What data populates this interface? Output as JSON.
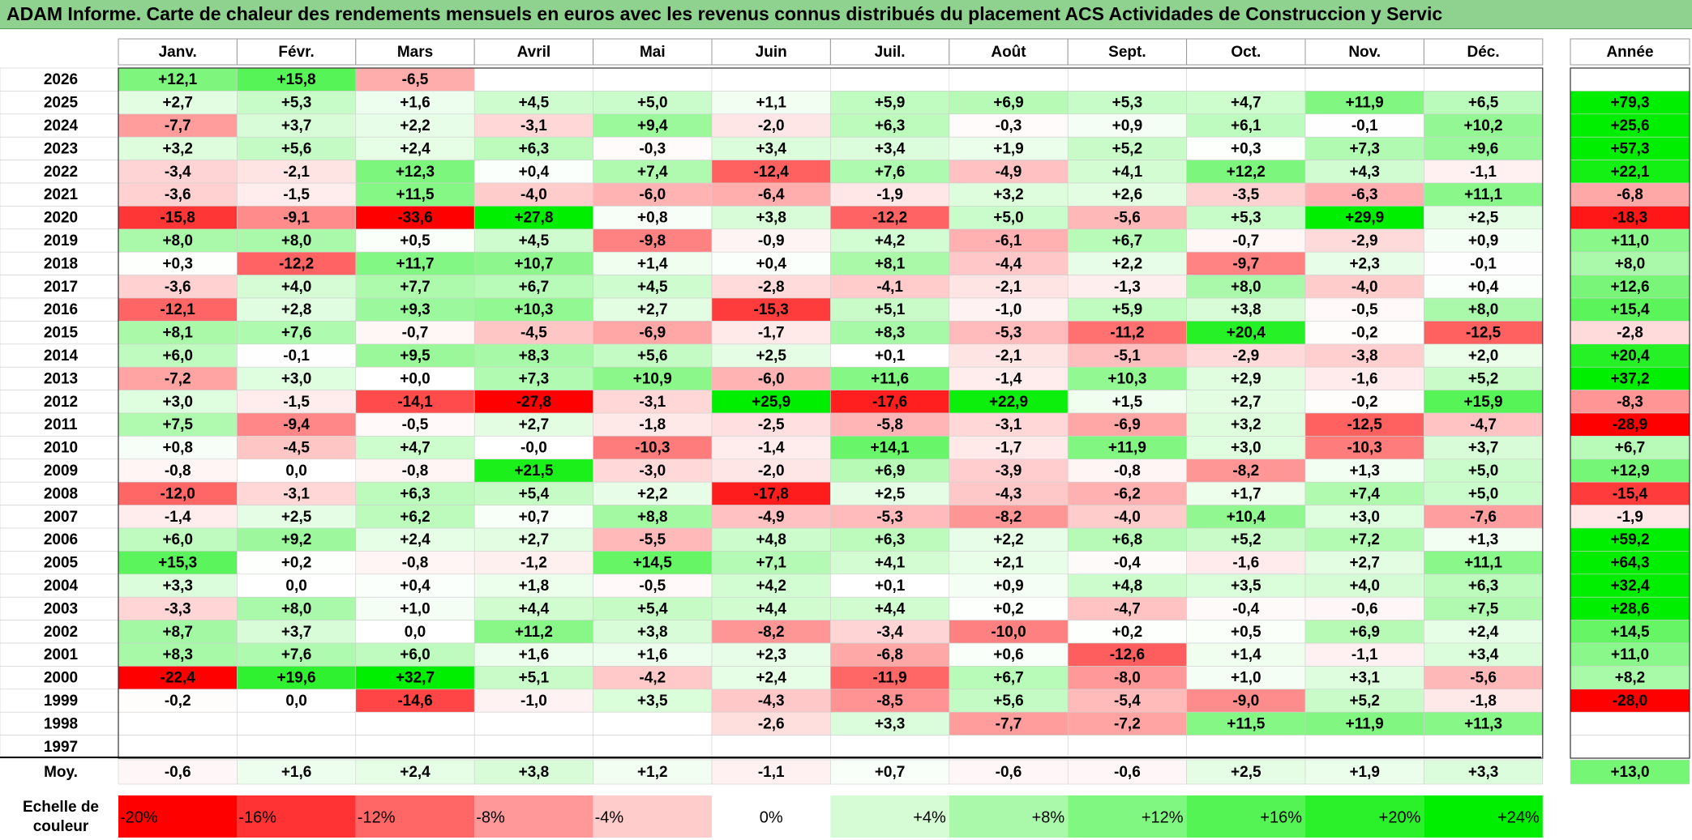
{
  "chart_data": {
    "type": "heatmap",
    "title": "ADAM Informe. Carte de chaleur des rendements mensuels en euros avec les revenus connus distribués du placement ACS Actividades de Construccion y Servic",
    "months": [
      "Janv.",
      "Févr.",
      "Mars",
      "Avril",
      "Mai",
      "Juin",
      "Juil.",
      "Août",
      "Sept.",
      "Oct.",
      "Nov.",
      "Déc."
    ],
    "year_header": "Année",
    "years": [
      "2026",
      "2025",
      "2024",
      "2023",
      "2022",
      "2021",
      "2020",
      "2019",
      "2018",
      "2017",
      "2016",
      "2015",
      "2014",
      "2013",
      "2012",
      "2011",
      "2010",
      "2009",
      "2008",
      "2007",
      "2006",
      "2005",
      "2004",
      "2003",
      "2002",
      "2001",
      "2000",
      "1999",
      "1998",
      "1997"
    ],
    "values": [
      [
        "+12,1",
        "+15,8",
        "-6,5",
        "",
        "",
        "",
        "",
        "",
        "",
        "",
        "",
        ""
      ],
      [
        "+2,7",
        "+5,3",
        "+1,6",
        "+4,5",
        "+5,0",
        "+1,1",
        "+5,9",
        "+6,9",
        "+5,3",
        "+4,7",
        "+11,9",
        "+6,5"
      ],
      [
        "-7,7",
        "+3,7",
        "+2,2",
        "-3,1",
        "+9,4",
        "-2,0",
        "+6,3",
        "-0,3",
        "+0,9",
        "+6,1",
        "-0,1",
        "+10,2"
      ],
      [
        "+3,2",
        "+5,6",
        "+2,4",
        "+6,3",
        "-0,3",
        "+3,4",
        "+3,4",
        "+1,9",
        "+5,2",
        "+0,3",
        "+7,3",
        "+9,6"
      ],
      [
        "-3,4",
        "-2,1",
        "+12,3",
        "+0,4",
        "+7,4",
        "-12,4",
        "+7,6",
        "-4,9",
        "+4,1",
        "+12,2",
        "+4,3",
        "-1,1"
      ],
      [
        "-3,6",
        "-1,5",
        "+11,5",
        "-4,0",
        "-6,0",
        "-6,4",
        "-1,9",
        "+3,2",
        "+2,6",
        "-3,5",
        "-6,3",
        "+11,1"
      ],
      [
        "-15,8",
        "-9,1",
        "-33,6",
        "+27,8",
        "+0,8",
        "+3,8",
        "-12,2",
        "+5,0",
        "-5,6",
        "+5,3",
        "+29,9",
        "+2,5"
      ],
      [
        "+8,0",
        "+8,0",
        "+0,5",
        "+4,5",
        "-9,8",
        "-0,9",
        "+4,2",
        "-6,1",
        "+6,7",
        "-0,7",
        "-2,9",
        "+0,9"
      ],
      [
        "+0,3",
        "-12,2",
        "+11,7",
        "+10,7",
        "+1,4",
        "+0,4",
        "+8,1",
        "-4,4",
        "+2,2",
        "-9,7",
        "+2,3",
        "-0,1"
      ],
      [
        "-3,6",
        "+4,0",
        "+7,7",
        "+6,7",
        "+4,5",
        "-2,8",
        "-4,1",
        "-2,1",
        "-1,3",
        "+8,0",
        "-4,0",
        "+0,4"
      ],
      [
        "-12,1",
        "+2,8",
        "+9,3",
        "+10,3",
        "+2,7",
        "-15,3",
        "+5,1",
        "-1,0",
        "+5,9",
        "+3,8",
        "-0,5",
        "+8,0"
      ],
      [
        "+8,1",
        "+7,6",
        "-0,7",
        "-4,5",
        "-6,9",
        "-1,7",
        "+8,3",
        "-5,3",
        "-11,2",
        "+20,4",
        "-0,2",
        "-12,5"
      ],
      [
        "+6,0",
        "-0,1",
        "+9,5",
        "+8,3",
        "+5,6",
        "+2,5",
        "+0,1",
        "-2,1",
        "-5,1",
        "-2,9",
        "-3,8",
        "+2,0"
      ],
      [
        "-7,2",
        "+3,0",
        "+0,0",
        "+7,3",
        "+10,9",
        "-6,0",
        "+11,6",
        "-1,4",
        "+10,3",
        "+2,9",
        "-1,6",
        "+5,2"
      ],
      [
        "+3,0",
        "-1,5",
        "-14,1",
        "-27,8",
        "-3,1",
        "+25,9",
        "-17,6",
        "+22,9",
        "+1,5",
        "+2,7",
        "-0,2",
        "+15,9"
      ],
      [
        "+7,5",
        "-9,4",
        "-0,5",
        "+2,7",
        "-1,8",
        "-2,5",
        "-5,8",
        "-3,1",
        "-6,9",
        "+3,2",
        "-12,5",
        "-4,7"
      ],
      [
        "+0,8",
        "-4,5",
        "+4,7",
        "-0,0",
        "-10,3",
        "-1,4",
        "+14,1",
        "-1,7",
        "+11,9",
        "+3,0",
        "-10,3",
        "+3,7"
      ],
      [
        "-0,8",
        "0,0",
        "-0,8",
        "+21,5",
        "-3,0",
        "-2,0",
        "+6,9",
        "-3,9",
        "-0,8",
        "-8,2",
        "+1,3",
        "+5,0"
      ],
      [
        "-12,0",
        "-3,1",
        "+6,3",
        "+5,4",
        "+2,2",
        "-17,8",
        "+2,5",
        "-4,3",
        "-6,2",
        "+1,7",
        "+7,4",
        "+5,0"
      ],
      [
        "-1,4",
        "+2,5",
        "+6,2",
        "+0,7",
        "+8,8",
        "-4,9",
        "-5,3",
        "-8,2",
        "-4,0",
        "+10,4",
        "+3,0",
        "-7,6"
      ],
      [
        "+6,0",
        "+9,2",
        "+2,4",
        "+2,7",
        "-5,5",
        "+4,8",
        "+6,3",
        "+2,2",
        "+6,8",
        "+5,2",
        "+7,2",
        "+1,3"
      ],
      [
        "+15,3",
        "+0,2",
        "-0,8",
        "-1,2",
        "+14,5",
        "+7,1",
        "+4,1",
        "+2,1",
        "-0,4",
        "-1,6",
        "+2,7",
        "+11,1"
      ],
      [
        "+3,3",
        "0,0",
        "+0,4",
        "+1,8",
        "-0,5",
        "+4,2",
        "+0,1",
        "+0,9",
        "+4,8",
        "+3,5",
        "+4,0",
        "+6,3"
      ],
      [
        "-3,3",
        "+8,0",
        "+1,0",
        "+4,4",
        "+5,4",
        "+4,4",
        "+4,4",
        "+0,2",
        "-4,7",
        "-0,4",
        "-0,6",
        "+7,5"
      ],
      [
        "+8,7",
        "+3,7",
        "0,0",
        "+11,2",
        "+3,8",
        "-8,2",
        "-3,4",
        "-10,0",
        "+0,2",
        "+0,5",
        "+6,9",
        "+2,4"
      ],
      [
        "+8,3",
        "+7,6",
        "+6,0",
        "+1,6",
        "+1,6",
        "+2,3",
        "-6,8",
        "+0,6",
        "-12,6",
        "+1,4",
        "-1,1",
        "+3,4"
      ],
      [
        "-22,4",
        "+19,6",
        "+32,7",
        "+5,1",
        "-4,2",
        "+2,4",
        "-11,9",
        "+6,7",
        "-8,0",
        "+1,0",
        "+3,1",
        "-5,6"
      ],
      [
        "-0,2",
        "0,0",
        "-14,6",
        "-1,0",
        "+3,5",
        "-4,3",
        "-8,5",
        "+5,6",
        "-5,4",
        "-9,0",
        "+5,2",
        "-1,8"
      ],
      [
        "",
        "",
        "",
        "",
        "",
        "-2,6",
        "+3,3",
        "-7,7",
        "-7,2",
        "+11,5",
        "+11,9",
        "+11,3"
      ],
      [
        "",
        "",
        "",
        "",
        "",
        "",
        "",
        "",
        "",
        "",
        "",
        ""
      ]
    ],
    "annual": [
      "",
      "+79,3",
      "+25,6",
      "+57,3",
      "+22,1",
      "-6,8",
      "-18,3",
      "+11,0",
      "+8,0",
      "+12,6",
      "+15,4",
      "-2,8",
      "+20,4",
      "+37,2",
      "-8,3",
      "-28,9",
      "+6,7",
      "+12,9",
      "-15,4",
      "-1,9",
      "+59,2",
      "+64,3",
      "+32,4",
      "+28,6",
      "+14,5",
      "+11,0",
      "+8,2",
      "-28,0",
      "",
      ""
    ],
    "avg_label": "Moy.",
    "averages": [
      "-0,6",
      "+1,6",
      "+2,4",
      "+3,8",
      "+1,2",
      "-1,1",
      "+0,7",
      "-0,6",
      "-0,6",
      "+2,5",
      "+1,9",
      "+3,3"
    ],
    "avg_annual": "+13,0",
    "scale_label": [
      "Echelle de",
      "couleur"
    ],
    "scale": [
      "-20%",
      "-16%",
      "-12%",
      "-8%",
      "-4%",
      "0%",
      "+4%",
      "+8%",
      "+12%",
      "+16%",
      "+20%",
      "+24%"
    ],
    "scale_values": [
      -20,
      -16,
      -12,
      -8,
      -4,
      0,
      4,
      8,
      12,
      16,
      20,
      24
    ],
    "colors": {
      "negative_max": "#ff0000",
      "positive_max": "#00ee00",
      "neutral": "#ffffff",
      "title_bar": "#8fd18f"
    }
  }
}
